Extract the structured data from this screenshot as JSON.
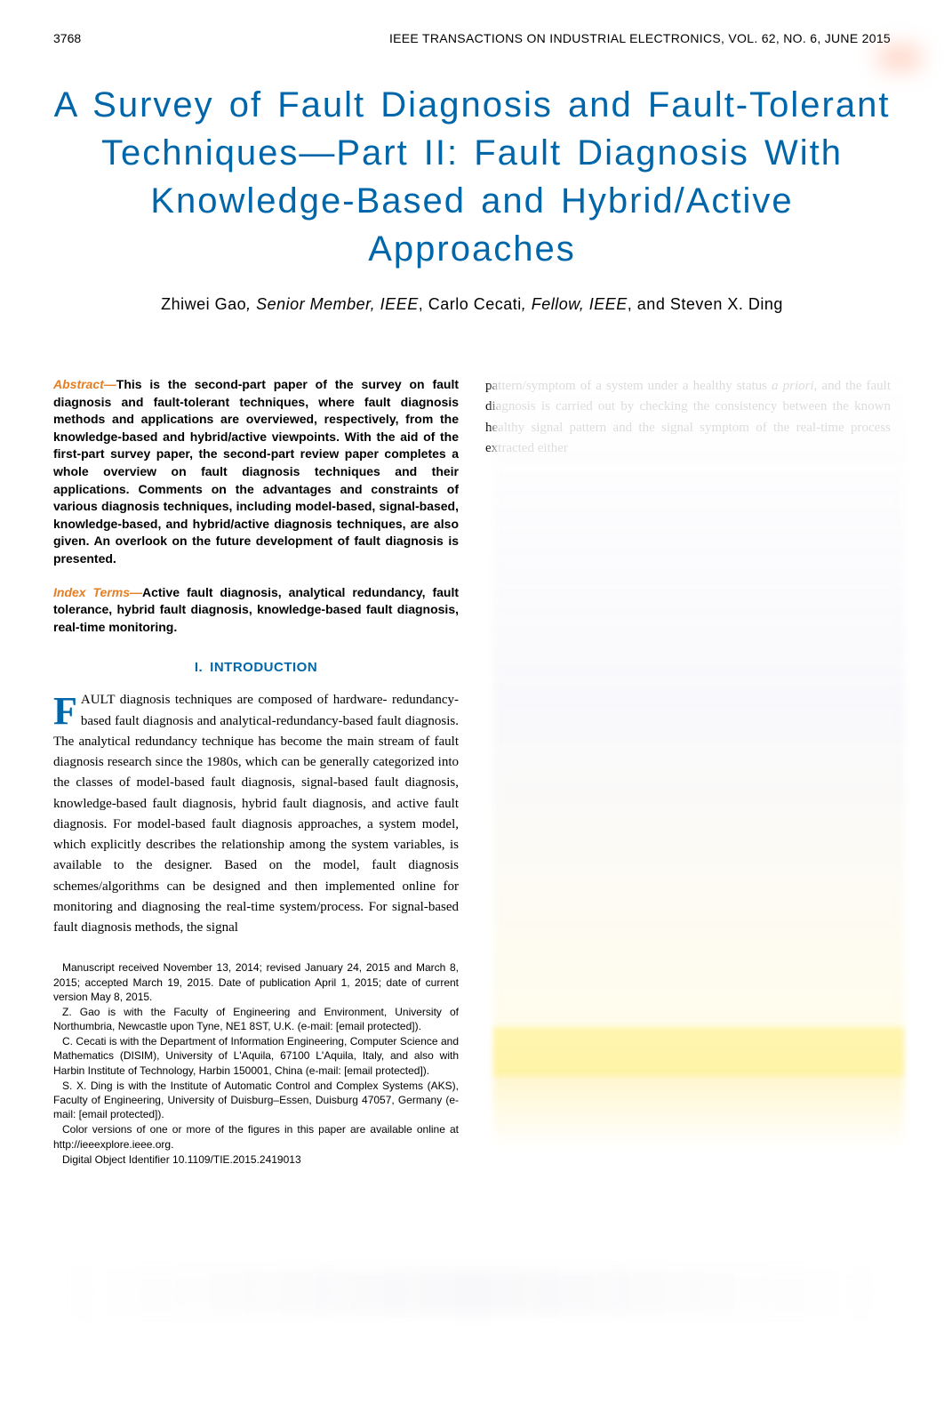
{
  "header": {
    "page_number": "3768",
    "journal_info": "IEEE TRANSACTIONS ON INDUSTRIAL ELECTRONICS, VOL. 62, NO. 6, JUNE 2015"
  },
  "title": "A Survey of Fault Diagnosis and Fault-Tolerant Techniques—Part II: Fault Diagnosis With Knowledge-Based and Hybrid/Active Approaches",
  "authors": {
    "author1_name": "Zhiwei Gao",
    "author1_title": ", Senior Member, IEEE",
    "author2_name": ", Carlo Cecati",
    "author2_title": ", Fellow, IEEE",
    "author3_name": ", and Steven X. Ding"
  },
  "abstract": {
    "label": "Abstract—",
    "text": "This is the second-part paper of the survey on fault diagnosis and fault-tolerant techniques, where fault diagnosis methods and applications are overviewed, respectively, from the knowledge-based and hybrid/active viewpoints. With the aid of the first-part survey paper, the second-part review paper completes a whole overview on fault diagnosis techniques and their applications. Comments on the advantages and constraints of various diagnosis techniques, including model-based, signal-based, knowledge-based, and hybrid/active diagnosis techniques, are also given. An overlook on the future development of fault diagnosis is presented."
  },
  "index_terms": {
    "label": "Index Terms—",
    "text": "Active fault diagnosis, analytical redundancy, fault tolerance, hybrid fault diagnosis, knowledge-based fault diagnosis, real-time monitoring."
  },
  "section1": {
    "number": "I.",
    "title": "INTRODUCTION"
  },
  "intro_paragraph": {
    "dropcap": "F",
    "first_line": "AULT diagnosis techniques are composed of hardware-",
    "text": "redundancy-based fault diagnosis and analytical-redundancy-based fault diagnosis. The analytical redundancy technique has become the main stream of fault diagnosis research since the 1980s, which can be generally categorized into the classes of model-based fault diagnosis, signal-based fault diagnosis, knowledge-based fault diagnosis, hybrid fault diagnosis, and active fault diagnosis. For model-based fault diagnosis approaches, a system model, which explicitly describes the relationship among the system variables, is available to the designer. Based on the model, fault diagnosis schemes/algorithms can be designed and then implemented online for monitoring and diagnosing the real-time system/process. For signal-based fault diagnosis methods, the signal"
  },
  "right_column": {
    "text_start": "pattern/symptom of a system under a healthy status",
    "italic_word": "a priori",
    "text_continue": ", and the fault diagnosis is carried out by checking the consistency between the known healthy signal pattern and the signal symptom of the real-time process extracted either"
  },
  "manuscript": {
    "p1": "Manuscript received November 13, 2014; revised January 24, 2015 and March 8, 2015; accepted March 19, 2015. Date of publication April 1, 2015; date of current version May 8, 2015.",
    "p2": "Z. Gao is with the Faculty of Engineering and Environment, University of Northumbria, Newcastle upon Tyne, NE1 8ST, U.K. (e-mail: [email protected]).",
    "p3": "C. Cecati is with the Department of Information Engineering, Computer Science and Mathematics (DISIM), University of L'Aquila, 67100 L'Aquila, Italy, and also with Harbin Institute of Technology, Harbin 150001, China (e-mail: [email protected]).",
    "p4": "S. X. Ding is with the Institute of Automatic Control and Complex Systems (AKS), Faculty of Engineering, University of Duisburg–Essen, Duisburg 47057, Germany (e-mail: [email protected]).",
    "p5": "Color versions of one or more of the figures in this paper are available online at http://ieeexplore.ieee.org.",
    "p6": "Digital Object Identifier 10.1109/TIE.2015.2419013"
  },
  "colors": {
    "title_blue": "#0066aa",
    "abstract_orange": "#e67e22",
    "text_black": "#000000",
    "background": "#ffffff"
  }
}
